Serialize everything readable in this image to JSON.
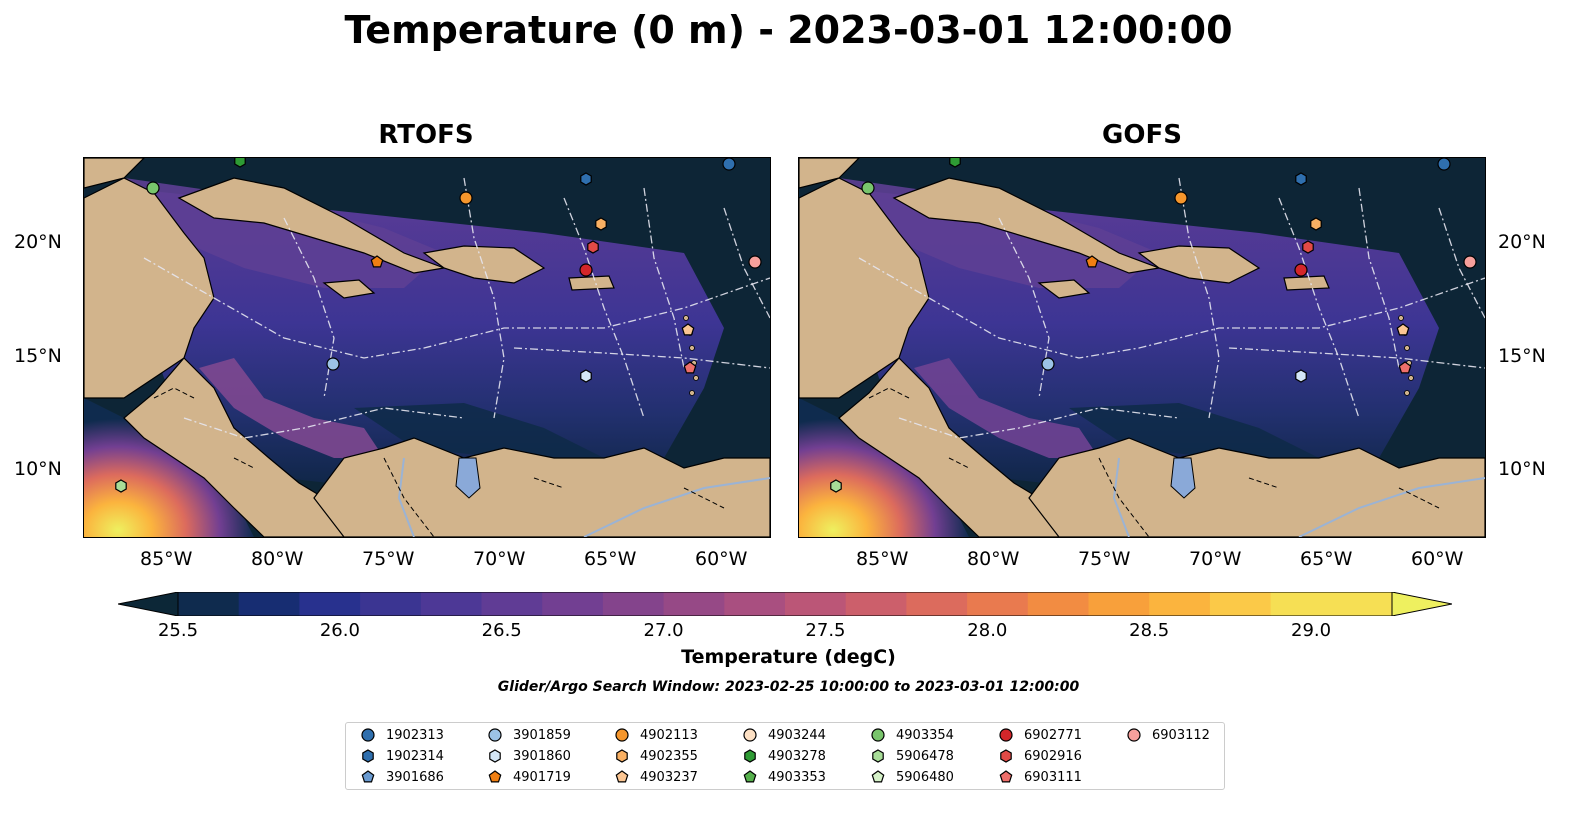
{
  "title": "Temperature (0 m) - 2023-03-01 12:00:00",
  "panels": [
    {
      "title": "RTOFS"
    },
    {
      "title": "GOFS"
    }
  ],
  "lat_labels": [
    "20°N",
    "15°N",
    "10°N"
  ],
  "lon_labels": [
    "85°W",
    "80°W",
    "75°W",
    "70°W",
    "65°W",
    "60°W"
  ],
  "colorbar": {
    "label": "Temperature (degC)",
    "ticks": [
      "25.5",
      "26.0",
      "26.5",
      "27.0",
      "27.5",
      "28.0",
      "28.5",
      "29.0"
    ],
    "colors": [
      "#0c2737",
      "#0f2b4e",
      "#172d72",
      "#28318e",
      "#3b3592",
      "#4d3896",
      "#603c95",
      "#723f92",
      "#84448c",
      "#964986",
      "#a94f80",
      "#bb5677",
      "#cc5f6b",
      "#dc6b5d",
      "#e97a4f",
      "#f28c42",
      "#f8a03b",
      "#fbb43e",
      "#fbc948",
      "#f6df54",
      "#eef05f"
    ],
    "vmin": 25.5,
    "vmax": 29.25
  },
  "search_window": "Glider/Argo Search Window: 2023-02-25 10:00:00 to 2023-03-01 12:00:00",
  "legend": [
    {
      "id": "1902313",
      "marker": "circle",
      "color": "#2f6fae"
    },
    {
      "id": "1902314",
      "marker": "hexagon",
      "color": "#2f6fae"
    },
    {
      "id": "3901686",
      "marker": "pentagon",
      "color": "#6a9bd1"
    },
    {
      "id": "3901859",
      "marker": "circle",
      "color": "#9cc3e6"
    },
    {
      "id": "3901860",
      "marker": "hexagon",
      "color": "#d4e6f6"
    },
    {
      "id": "4901719",
      "marker": "pentagon",
      "color": "#f07f12"
    },
    {
      "id": "4902113",
      "marker": "circle",
      "color": "#f5962c"
    },
    {
      "id": "4902355",
      "marker": "hexagon",
      "color": "#f9b063"
    },
    {
      "id": "4903237",
      "marker": "pentagon",
      "color": "#fcc693"
    },
    {
      "id": "4903244",
      "marker": "circle",
      "color": "#fde0c4"
    },
    {
      "id": "4903278",
      "marker": "hexagon",
      "color": "#2e9b34"
    },
    {
      "id": "4903353",
      "marker": "pentagon",
      "color": "#56b04c"
    },
    {
      "id": "4903354",
      "marker": "circle",
      "color": "#79c56c"
    },
    {
      "id": "5906478",
      "marker": "hexagon",
      "color": "#a8dd98"
    },
    {
      "id": "5906480",
      "marker": "pentagon",
      "color": "#d5f1c8"
    },
    {
      "id": "6902771",
      "marker": "circle",
      "color": "#d3262a"
    },
    {
      "id": "6902916",
      "marker": "hexagon",
      "color": "#e24a46"
    },
    {
      "id": "6903111",
      "marker": "pentagon",
      "color": "#ef6f6b"
    },
    {
      "id": "6903112",
      "marker": "circle",
      "color": "#f7a09c"
    }
  ]
}
